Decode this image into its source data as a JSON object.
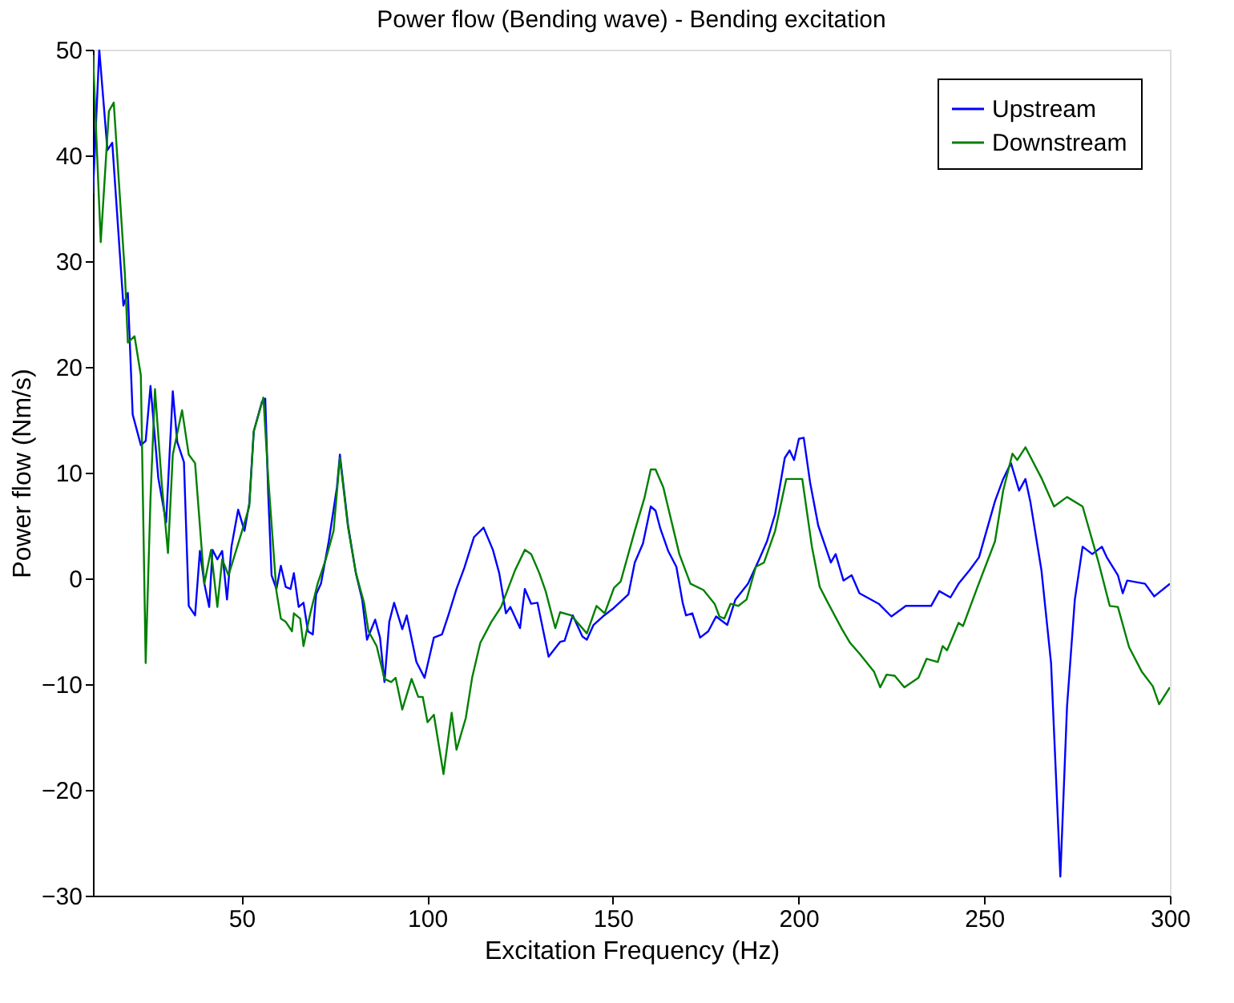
{
  "chart_data": {
    "type": "line",
    "title": "Power flow (Bending wave) - Bending excitation",
    "xlabel": "Excitation Frequency (Hz)",
    "ylabel": "Power flow (Nm/s)",
    "xlim": [
      10,
      300
    ],
    "xticks": [
      50,
      100,
      150,
      200,
      250,
      300
    ],
    "ylim": [
      -30,
      50
    ],
    "yticks": [
      -30,
      -20,
      -10,
      0,
      10,
      20,
      30,
      40,
      50
    ],
    "grid": false,
    "legend": "top right",
    "series": [
      {
        "name": "Upstream",
        "color": "#0000ff",
        "x": [
          10,
          11.7,
          13.9,
          15.2,
          18.2,
          19.4,
          20.7,
          22.9,
          24.2,
          25.5,
          27.6,
          29.7,
          31.5,
          32.7,
          34.5,
          35.8,
          37.5,
          38.8,
          40,
          41.3,
          42.2,
          43.5,
          44.8,
          46.1,
          47.3,
          49.1,
          50.8,
          52.1,
          53.3,
          55.5,
          56.4,
          57.2,
          58.1,
          59.4,
          60.6,
          61.9,
          63.2,
          64.1,
          65.4,
          66.7,
          67.9,
          69.2,
          70.1,
          71.4,
          73.5,
          75.7,
          76.5,
          78.7,
          80.8,
          82.5,
          83.8,
          86,
          87.3,
          88.5,
          89.8,
          91.1,
          93.3,
          94.5,
          97.1,
          99.3,
          101.8,
          104,
          105.7,
          107.9,
          110,
          112.6,
          115.2,
          117.7,
          119.4,
          121.2,
          122.4,
          125,
          126.3,
          128,
          129.7,
          132.7,
          135.8,
          137,
          139.2,
          141.8,
          143,
          144.8,
          147.3,
          149.9,
          154.2,
          155.9,
          158.1,
          160.2,
          161.5,
          162.8,
          164.9,
          167.1,
          168.8,
          169.7,
          171.4,
          173.5,
          175.7,
          177.8,
          180.8,
          183,
          186.4,
          189.4,
          191.5,
          193.7,
          196.3,
          197.6,
          198.8,
          200.1,
          201.4,
          203.1,
          205.3,
          208.7,
          210,
          212.1,
          214.3,
          216.4,
          221.6,
          225,
          228.9,
          231.5,
          235.7,
          237.9,
          240.9,
          243.1,
          246.1,
          248.6,
          252.9,
          255.1,
          257.2,
          259.4,
          261.1,
          262.4,
          265.4,
          268,
          270.5,
          272.3,
          274.4,
          276.5,
          279.1,
          281.7,
          283,
          286,
          287.3,
          288.5,
          293.3,
          295.8,
          300
        ],
        "values": [
          36.4,
          50,
          40.5,
          41.2,
          25.8,
          27,
          15.5,
          12.6,
          13,
          18.2,
          9.5,
          5.3,
          17.7,
          12.9,
          11,
          -2.6,
          -3.5,
          2.6,
          -0.5,
          -2.7,
          2.7,
          1.8,
          2.6,
          -2,
          3,
          6.5,
          4.5,
          7.1,
          13.9,
          16.7,
          17,
          8,
          0.3,
          -1,
          1.2,
          -0.8,
          -1,
          0.5,
          -2.7,
          -2.3,
          -5,
          -5.3,
          -1.5,
          -0.5,
          3.5,
          8.6,
          11.7,
          5,
          0.5,
          -2,
          -5.8,
          -3.9,
          -5.6,
          -9.8,
          -4.1,
          -2.3,
          -4.8,
          -3.5,
          -7.9,
          -9.4,
          -5.6,
          -5.3,
          -3.5,
          -1,
          1,
          3.9,
          4.8,
          2.7,
          0.5,
          -3.3,
          -2.7,
          -4.7,
          -1,
          -2.4,
          -2.3,
          -7.4,
          -6,
          -5.9,
          -3.5,
          -5.5,
          -5.8,
          -4.4,
          -3.6,
          -2.9,
          -1.5,
          1.5,
          3.3,
          6.8,
          6.4,
          4.7,
          2.6,
          1.1,
          -2.3,
          -3.5,
          -3.3,
          -5.6,
          -5,
          -3.6,
          -4.4,
          -2,
          -0.5,
          1.8,
          3.5,
          6.1,
          11.4,
          12.1,
          11.2,
          13.2,
          13.3,
          9.1,
          5,
          1.5,
          2.3,
          -0.2,
          0.3,
          -1.4,
          -2.4,
          -3.6,
          -2.6,
          -2.6,
          -2.6,
          -1.2,
          -1.8,
          -0.5,
          0.8,
          2,
          7.3,
          9.4,
          10.9,
          8.3,
          9.4,
          7.3,
          0.8,
          -8,
          -28.2,
          -12.1,
          -2,
          3,
          2.3,
          3,
          2,
          0.3,
          -1.4,
          -0.2,
          -0.5,
          -1.7,
          -0.5
        ]
      },
      {
        "name": "Downstream",
        "color": "#008000",
        "x": [
          10,
          12.1,
          14.3,
          15.6,
          18.6,
          19.4,
          21.2,
          22.9,
          24.2,
          25.5,
          26.7,
          28.5,
          30.2,
          31.5,
          34,
          35.8,
          37.5,
          40,
          41.8,
          43.5,
          44.8,
          46.5,
          49.9,
          52.1,
          53.3,
          55.9,
          57.2,
          59.4,
          60.6,
          61.9,
          63.6,
          64.1,
          65.8,
          66.7,
          68.4,
          70.5,
          72.7,
          74.8,
          76.5,
          78.7,
          80.8,
          83,
          84.2,
          86.4,
          88.5,
          90.3,
          91.5,
          93.3,
          95.8,
          97.6,
          98.8,
          100.1,
          101.8,
          104.4,
          106.6,
          107.9,
          110.4,
          112.1,
          114.3,
          117.3,
          119.9,
          123.7,
          126.3,
          128,
          130.2,
          131.9,
          134.5,
          135.8,
          138.8,
          143,
          145.6,
          147.8,
          150.3,
          152.1,
          155.9,
          158.5,
          160.2,
          161.5,
          163.6,
          167.9,
          170.9,
          174.4,
          177.4,
          178.7,
          180,
          181.7,
          183.8,
          186,
          188.5,
          190.7,
          193.7,
          196.7,
          201,
          203.6,
          205.7,
          207.9,
          211.7,
          213.9,
          216.4,
          220.3,
          222,
          223.7,
          225.9,
          228.5,
          232.3,
          234.5,
          237.5,
          238.8,
          240,
          243.1,
          244.3,
          248.2,
          252.9,
          255.1,
          257.6,
          258.9,
          261.1,
          265.4,
          268.8,
          272.3,
          276.5,
          280.8,
          283.8,
          286,
          289,
          292.4,
          295.4,
          297.1,
          300
        ],
        "values": [
          49.5,
          31.8,
          44.2,
          45,
          28.8,
          22.3,
          22.9,
          19.2,
          -8,
          7.6,
          17.9,
          9.1,
          2.4,
          11.7,
          15.9,
          11.7,
          10.9,
          -0.5,
          2.7,
          -2.7,
          1.8,
          0.3,
          4.2,
          6.8,
          13.9,
          17.1,
          9.5,
          -1.2,
          -3.8,
          -4.1,
          -5,
          -3.3,
          -3.8,
          -6.4,
          -3.5,
          -0.5,
          1.8,
          4.5,
          11.4,
          4.8,
          0.5,
          -2.3,
          -5,
          -6.4,
          -9.5,
          -9.8,
          -9.4,
          -12.4,
          -9.5,
          -11.2,
          -11.2,
          -13.6,
          -12.9,
          -18.5,
          -12.7,
          -16.2,
          -13.2,
          -9.4,
          -6.1,
          -4.1,
          -2.7,
          0.8,
          2.7,
          2.3,
          0.5,
          -1.2,
          -4.7,
          -3.2,
          -3.5,
          -5.2,
          -2.6,
          -3.3,
          -0.9,
          -0.3,
          4.5,
          7.6,
          10.3,
          10.3,
          8.6,
          2.3,
          -0.5,
          -1.1,
          -2.4,
          -3.6,
          -3.8,
          -2.4,
          -2.6,
          -2,
          1.1,
          1.5,
          4.5,
          9.4,
          9.4,
          3,
          -0.8,
          -2.3,
          -4.8,
          -6.1,
          -7.1,
          -8.8,
          -10.3,
          -9.1,
          -9.2,
          -10.3,
          -9.4,
          -7.6,
          -7.9,
          -6.4,
          -6.8,
          -4.2,
          -4.5,
          -0.8,
          3.5,
          8.3,
          11.8,
          11.2,
          12.4,
          9.5,
          6.8,
          7.7,
          6.8,
          1.5,
          -2.6,
          -2.7,
          -6.5,
          -8.8,
          -10.2,
          -11.9,
          -10.3
        ]
      }
    ]
  }
}
